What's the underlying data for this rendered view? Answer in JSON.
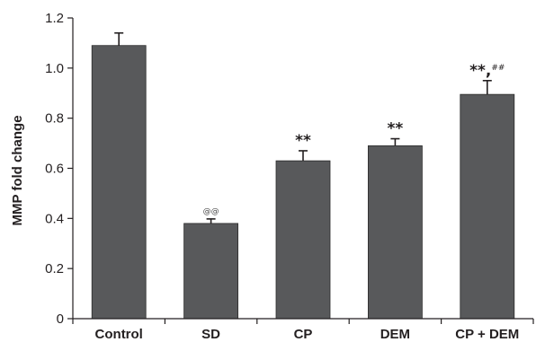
{
  "chart_data": {
    "type": "bar",
    "ylabel": "MMP fold change",
    "ylim": [
      0,
      1.2
    ],
    "yticks": [
      "0",
      "0.2",
      "0.4",
      "0.6",
      "0.8",
      "1.0",
      "1.2"
    ],
    "grid": false,
    "bar_color": "#58595b",
    "categories": [
      "Control",
      "SD",
      "CP",
      "DEM",
      "CP + DEM"
    ],
    "values": [
      1.09,
      0.38,
      0.63,
      0.69,
      0.895
    ],
    "errors": [
      0.05,
      0.018,
      0.04,
      0.028,
      0.055
    ],
    "annotations": [
      {
        "main": "",
        "sup": ""
      },
      {
        "main": "",
        "sup": "@@"
      },
      {
        "main": "**",
        "sup": ""
      },
      {
        "main": "**",
        "sup": ""
      },
      {
        "main": "**,",
        "sup": "##"
      }
    ]
  }
}
